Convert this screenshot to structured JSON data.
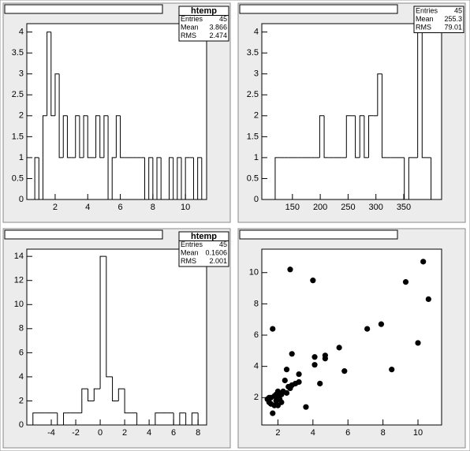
{
  "chart_data": [
    {
      "type": "histogram",
      "bins": [
        0.25,
        0.5,
        0.75,
        1,
        1.25,
        1.5,
        1.75,
        2,
        2.25,
        2.5,
        2.75,
        3,
        3.25,
        3.5,
        3.75,
        4,
        4.25,
        4.5,
        4.75,
        5,
        5.25,
        5.5,
        5.75,
        6,
        6.25,
        6.5,
        6.75,
        7,
        7.25,
        7.5,
        7.75,
        8,
        8.25,
        8.5,
        8.75,
        9,
        9.25,
        9.5,
        9.75,
        10,
        10.25,
        10.5,
        10.75,
        11,
        11.25
      ],
      "values": [
        0,
        0,
        1,
        0,
        2,
        4,
        2,
        3,
        1,
        2,
        1,
        1,
        2,
        1,
        2,
        1,
        1,
        2,
        1,
        2,
        0,
        1,
        2,
        1,
        1,
        1,
        1,
        1,
        1,
        0,
        1,
        0,
        1,
        0,
        0,
        1,
        0,
        1,
        0,
        1,
        1,
        0,
        1,
        0
      ],
      "color": "#000000",
      "xlim": [
        0.26,
        11.3
      ],
      "xticks": [
        2,
        4,
        6,
        8,
        10
      ],
      "ylim": [
        0,
        4.2
      ],
      "yticks": [
        0,
        0.5,
        1,
        1.5,
        2,
        2.5,
        3,
        3.5,
        4
      ],
      "stats": {
        "title": "htemp",
        "rows": [
          {
            "label": "Entries",
            "value": 45
          },
          {
            "label": "Mean",
            "value": 3.866
          },
          {
            "label": "RMS",
            "value": 2.474
          }
        ]
      }
    },
    {
      "type": "histogram",
      "bins": [
        95,
        103,
        111,
        119,
        127,
        135,
        143,
        151,
        159,
        167,
        175,
        183,
        191,
        199,
        207,
        215,
        223,
        231,
        239,
        247,
        255,
        263,
        271,
        279,
        287,
        295,
        303,
        311,
        319,
        327,
        335,
        343,
        351,
        359,
        367,
        375,
        383,
        391,
        399,
        407,
        415
      ],
      "values": [
        0,
        0,
        0,
        1,
        1,
        1,
        1,
        1,
        1,
        1,
        1,
        1,
        1,
        2,
        1,
        1,
        1,
        1,
        1,
        2,
        2,
        1,
        2,
        1,
        2,
        2,
        3,
        1,
        1,
        1,
        1,
        1,
        0,
        1,
        1,
        4,
        1,
        1,
        0,
        0
      ],
      "color": "#000000",
      "xlim": [
        95,
        418
      ],
      "xticks": [
        150,
        200,
        250,
        300,
        350
      ],
      "ylim": [
        0,
        4.2
      ],
      "yticks": [
        0,
        0.5,
        1,
        1.5,
        2,
        2.5,
        3,
        3.5,
        4
      ],
      "stats": {
        "rows": [
          {
            "label": "Entries",
            "value": 45
          },
          {
            "label": "Mean",
            "value": 255.3
          },
          {
            "label": "RMS",
            "value": 79.01
          }
        ]
      }
    },
    {
      "type": "histogram",
      "bins": [
        -6,
        -5.5,
        -5,
        -4.5,
        -4,
        -3.5,
        -3,
        -2.5,
        -2,
        -1.5,
        -1,
        -0.5,
        0,
        0.5,
        1,
        1.5,
        2,
        2.5,
        3,
        3.5,
        4,
        4.5,
        5,
        5.5,
        6,
        6.5,
        7,
        7.5,
        8,
        8.5
      ],
      "values": [
        0,
        1,
        1,
        1,
        1,
        0,
        1,
        1,
        1,
        3,
        2,
        3,
        14,
        4,
        2,
        3,
        1,
        1,
        0,
        0,
        0,
        1,
        1,
        1,
        0,
        1,
        0,
        1,
        0
      ],
      "color": "#000000",
      "xlim": [
        -6,
        8.7
      ],
      "xticks": [
        -4,
        -2,
        0,
        2,
        4,
        6,
        8
      ],
      "ylim": [
        0,
        14.6
      ],
      "yticks": [
        0,
        2,
        4,
        6,
        8,
        10,
        12,
        14
      ],
      "stats": {
        "title": "htemp",
        "rows": [
          {
            "label": "Entries",
            "value": 45
          },
          {
            "label": "Mean",
            "value": 0.1606
          },
          {
            "label": "RMS",
            "value": 2.001
          }
        ]
      }
    },
    {
      "type": "scatter",
      "x": [
        1.7,
        2.7,
        4.0,
        10.3,
        10.6,
        9.3,
        7.9,
        7.1,
        10.0,
        5.5,
        5.8,
        8.5,
        4.1,
        4.1,
        4.7,
        4.7,
        4.4,
        3.6,
        2.8,
        2.5,
        3.2,
        3.2,
        2.8,
        2.7,
        2.5,
        2.4,
        2.2,
        2.0,
        2.0,
        1.9,
        1.8,
        1.7,
        1.6,
        1.5,
        1.5,
        1.6,
        1.9,
        2.1,
        2.3,
        1.8,
        2.6,
        3.0,
        2.0,
        1.4,
        2.2
      ],
      "values": [
        6.4,
        10.2,
        9.5,
        10.7,
        8.3,
        9.4,
        6.7,
        6.4,
        5.5,
        5.2,
        3.7,
        3.8,
        4.6,
        4.1,
        4.7,
        4.5,
        2.9,
        1.4,
        4.8,
        3.8,
        3.5,
        3.0,
        2.8,
        2.6,
        2.3,
        3.1,
        2.2,
        2.4,
        2.1,
        1.8,
        1.5,
        1.0,
        2.0,
        1.7,
        2.0,
        1.6,
        2.2,
        1.9,
        2.4,
        2.1,
        2.7,
        2.9,
        1.5,
        1.9,
        1.7
      ],
      "color": "#000000",
      "xlim": [
        1.08,
        11.35
      ],
      "xticks": [
        2,
        4,
        6,
        8,
        10
      ],
      "ylim": [
        0.25,
        11.5
      ],
      "yticks": [
        2,
        4,
        6,
        8,
        10
      ]
    }
  ]
}
